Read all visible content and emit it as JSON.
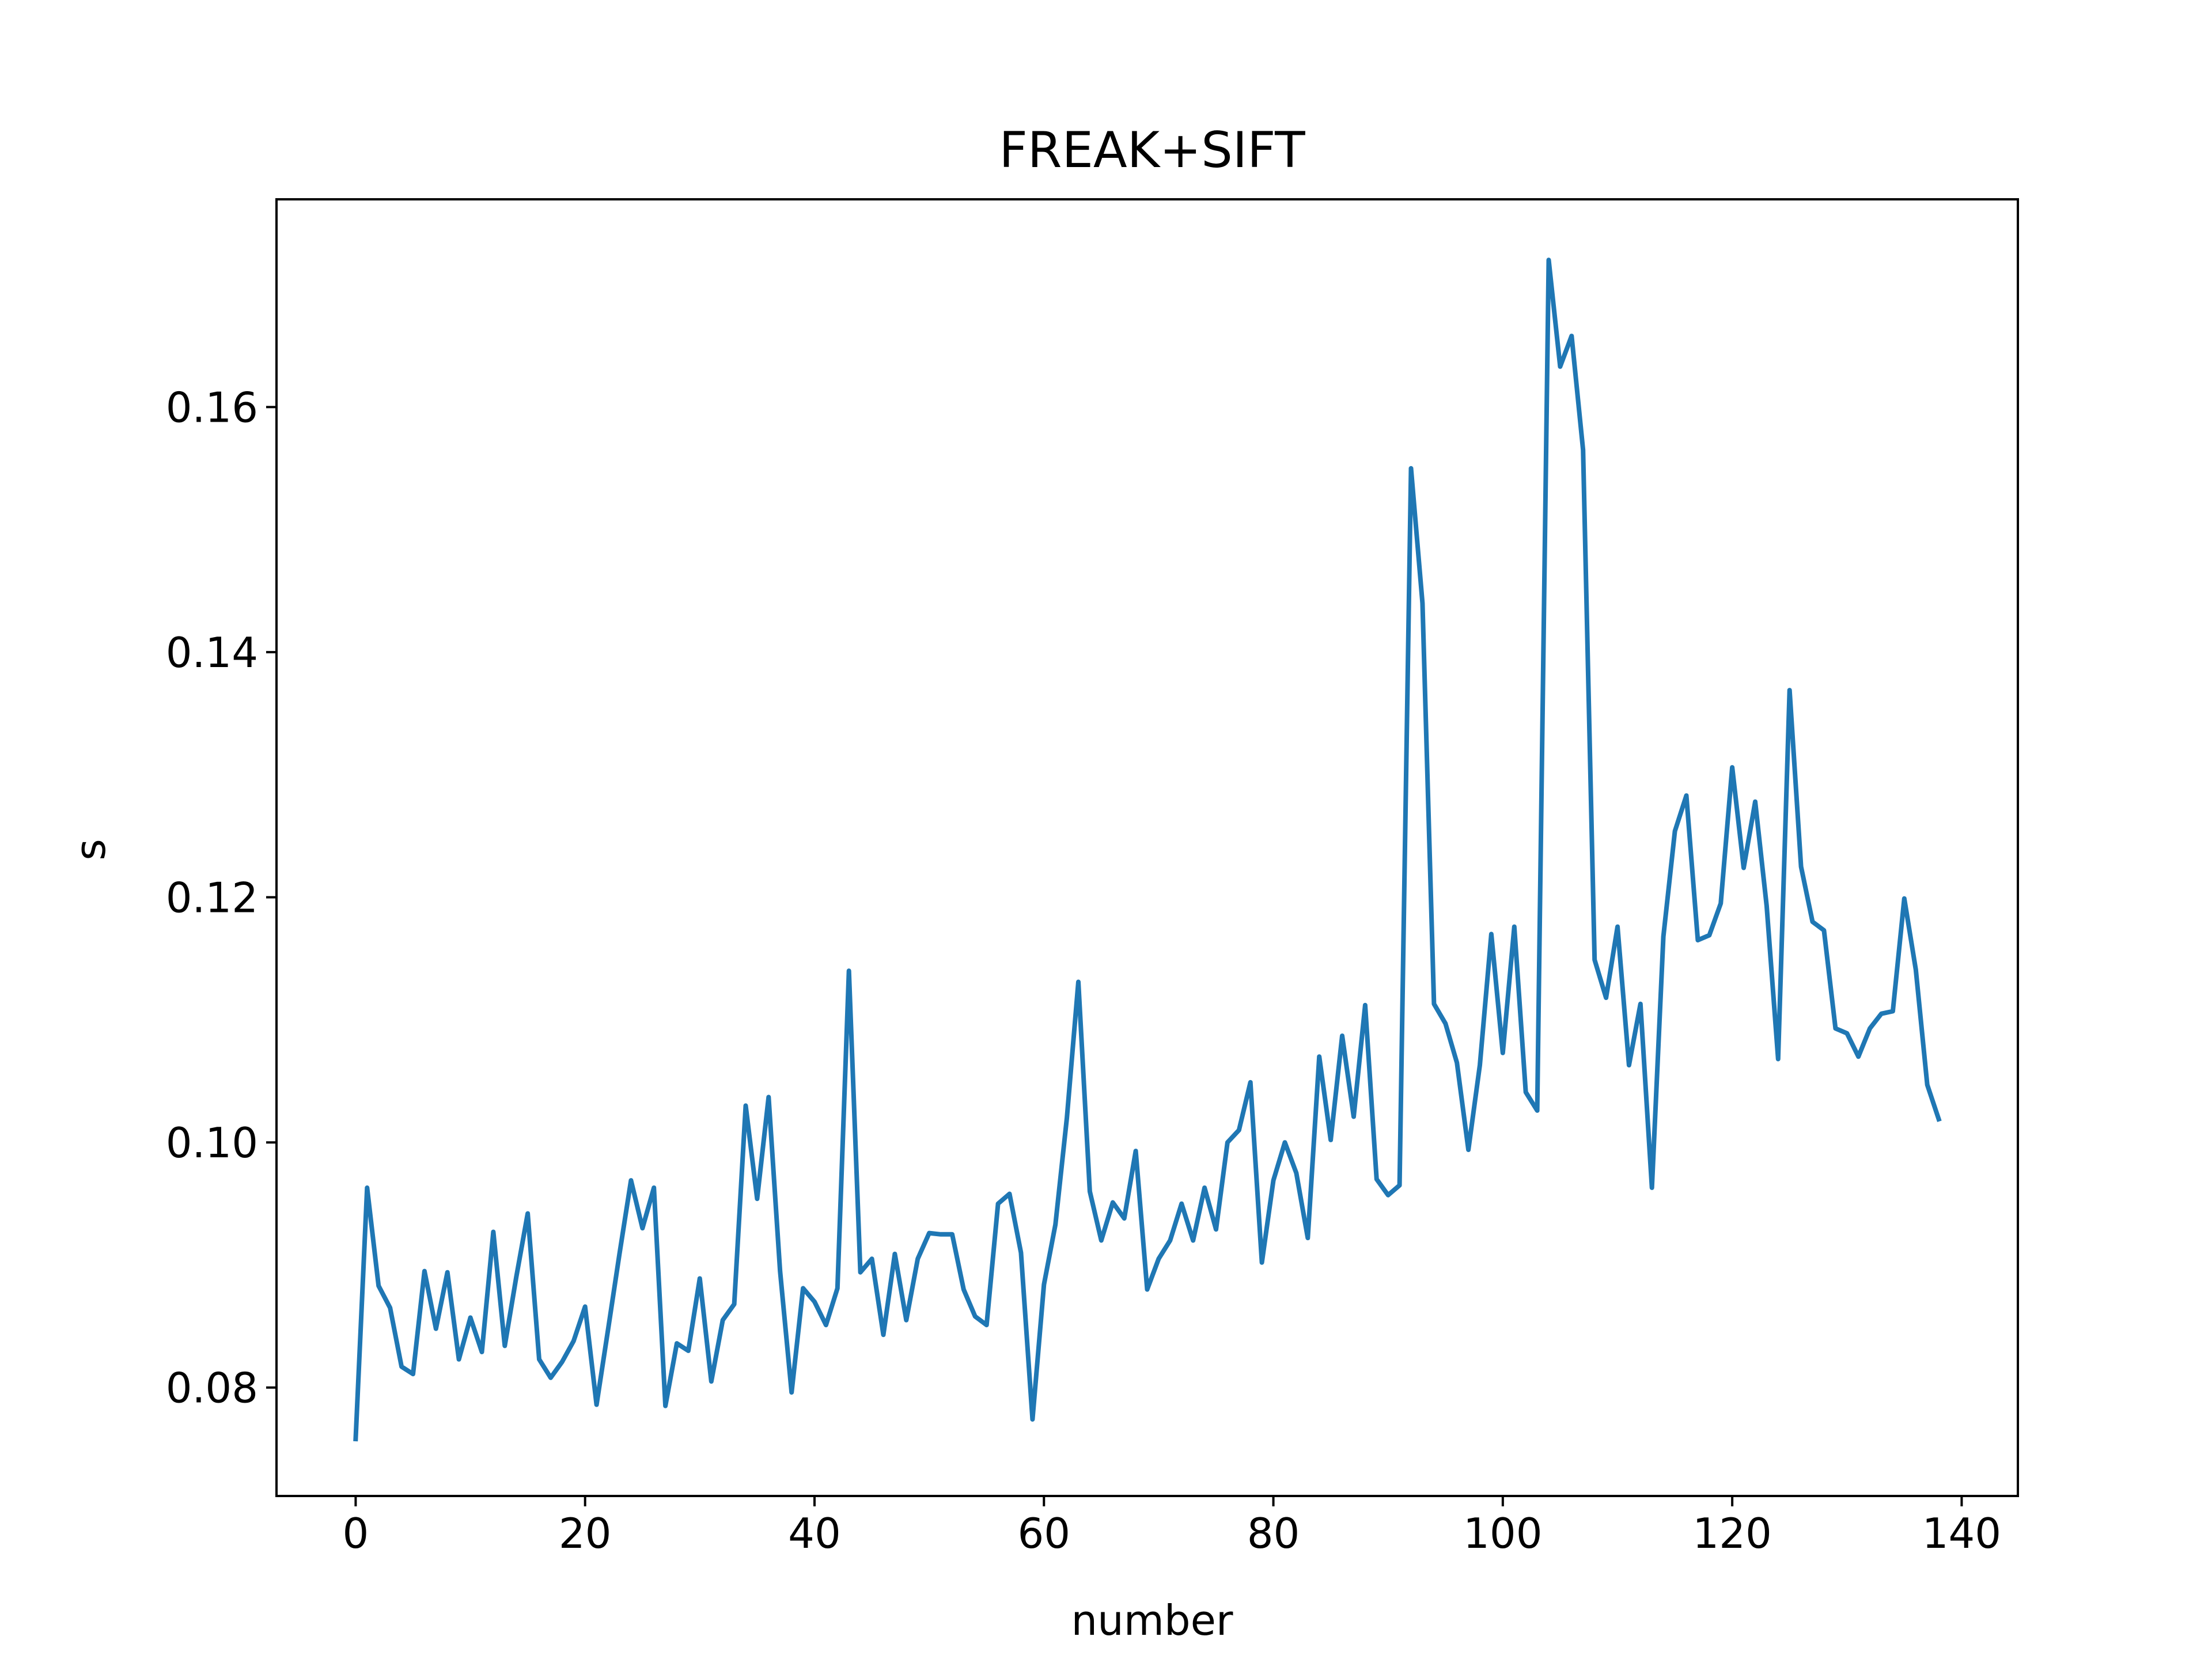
{
  "chart_data": {
    "type": "line",
    "title": "FREAK+SIFT",
    "xlabel": "number",
    "ylabel": "s",
    "xlim": [
      -6.9,
      144.9
    ],
    "ylim": [
      0.07115,
      0.17695
    ],
    "xticks": [
      0,
      20,
      40,
      60,
      80,
      100,
      120,
      140
    ],
    "xtick_labels": [
      "0",
      "20",
      "40",
      "60",
      "80",
      "100",
      "120",
      "140"
    ],
    "yticks": [
      0.08,
      0.1,
      0.12,
      0.14,
      0.16
    ],
    "ytick_labels": [
      "0.08",
      "0.10",
      "0.12",
      "0.14",
      "0.16"
    ],
    "grid": false,
    "line_color": "#1f77b4",
    "series": [
      {
        "values": [
          0.0758,
          0.0963,
          0.0883,
          0.0865,
          0.0817,
          0.0811,
          0.0895,
          0.0848,
          0.0894,
          0.0823,
          0.0857,
          0.0829,
          0.0927,
          0.0834,
          0.089,
          0.0942,
          0.0823,
          0.0808,
          0.0821,
          0.0838,
          0.0866,
          0.0786,
          0.0847,
          0.0909,
          0.0969,
          0.093,
          0.0963,
          0.0785,
          0.0836,
          0.083,
          0.0889,
          0.0805,
          0.0855,
          0.0868,
          0.103,
          0.0954,
          0.1037,
          0.0895,
          0.0796,
          0.0881,
          0.087,
          0.0851,
          0.0881,
          0.114,
          0.0894,
          0.0905,
          0.0843,
          0.0909,
          0.0855,
          0.0905,
          0.0926,
          0.0925,
          0.0925,
          0.088,
          0.0858,
          0.0851,
          0.095,
          0.0958,
          0.091,
          0.0774,
          0.0884,
          0.0933,
          0.102,
          0.1131,
          0.096,
          0.092,
          0.0951,
          0.0938,
          0.0993,
          0.088,
          0.0905,
          0.092,
          0.095,
          0.092,
          0.0963,
          0.0929,
          0.1,
          0.101,
          0.1049,
          0.0902,
          0.0969,
          0.1,
          0.0975,
          0.0922,
          0.107,
          0.1002,
          0.1087,
          0.1021,
          0.1112,
          0.097,
          0.0957,
          0.0965,
          0.155,
          0.144,
          0.1113,
          0.1097,
          0.1065,
          0.0994,
          0.1063,
          0.117,
          0.1073,
          0.1176,
          0.1041,
          0.1026,
          0.172,
          0.1633,
          0.1658,
          0.1565,
          0.1149,
          0.1118,
          0.1176,
          0.1063,
          0.1113,
          0.0963,
          0.1168,
          0.1254,
          0.1283,
          0.1165,
          0.1169,
          0.1195,
          0.1306,
          0.1224,
          0.1278,
          0.1193,
          0.1068,
          0.1369,
          0.1225,
          0.118,
          0.1173,
          0.1093,
          0.1089,
          0.107,
          0.1093,
          0.1105,
          0.1107,
          0.1199,
          0.1141,
          0.1047,
          0.1019
        ]
      }
    ]
  }
}
